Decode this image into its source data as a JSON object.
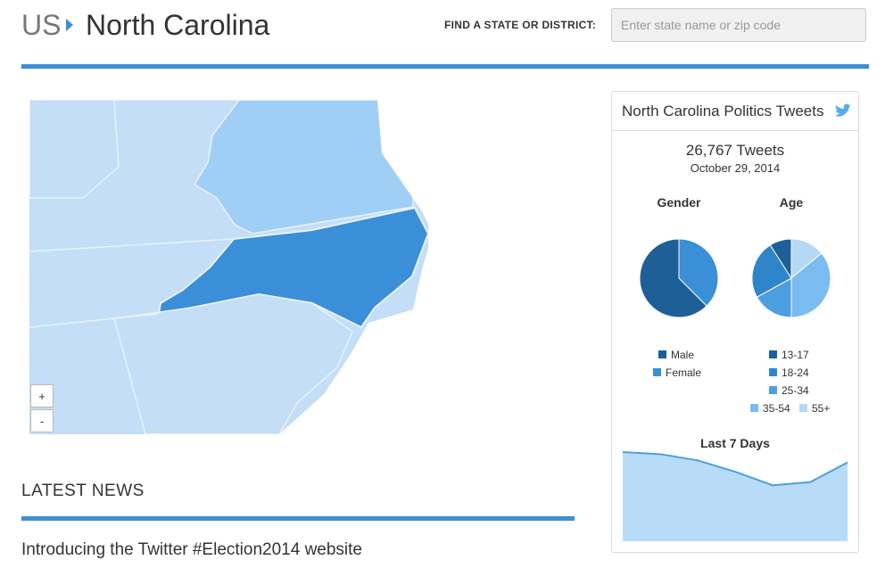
{
  "header": {
    "breadcrumb": "US",
    "state": "North Carolina",
    "search_label": "FIND A STATE OR DISTRICT:",
    "search_placeholder": "Enter state name or zip code"
  },
  "map": {
    "zoom_in": "+",
    "zoom_out": "-"
  },
  "news": {
    "title": "LATEST NEWS",
    "headline": "Introducing the Twitter #Election2014 website"
  },
  "panel": {
    "title": "North Carolina Politics Tweets",
    "count": "26,767 Tweets",
    "date": "October 29, 2014",
    "chart_data": [
      {
        "type": "pie",
        "title": "Gender",
        "categories": [
          "Male",
          "Female"
        ],
        "values": [
          62.5,
          37.5
        ],
        "colors": [
          "#1d5f96",
          "#3a8fd6"
        ]
      },
      {
        "type": "pie",
        "title": "Age",
        "categories": [
          "13-17",
          "18-24",
          "25-34",
          "35-54",
          "55+"
        ],
        "values": [
          9,
          24,
          17,
          36,
          14
        ],
        "colors": [
          "#1d5f96",
          "#2f85c9",
          "#4b9fe0",
          "#7bbcf0",
          "#b5d9f5"
        ]
      },
      {
        "type": "area",
        "title": "Last 7 Days",
        "values": [
          86,
          84,
          78,
          67,
          54,
          57,
          76
        ],
        "color": "#b8dcf7",
        "line_color": "#4b9fe0"
      }
    ]
  }
}
